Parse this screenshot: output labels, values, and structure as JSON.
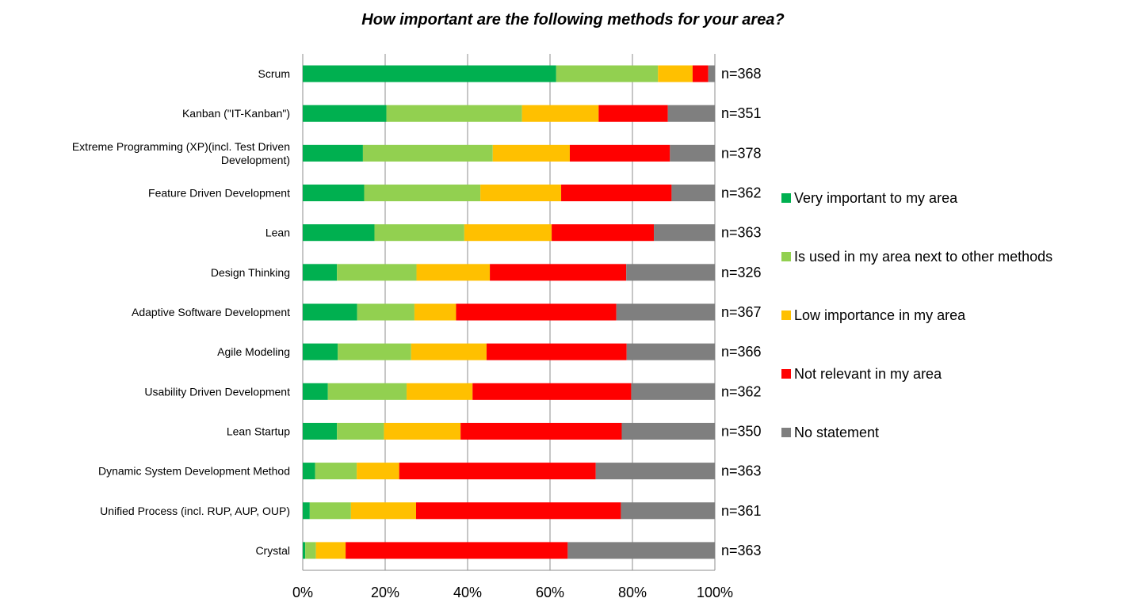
{
  "chart_data": {
    "type": "bar",
    "orientation": "horizontal",
    "stacked": "percent",
    "title": "How important are the following methods for your area?",
    "categories": [
      "Scrum",
      "Kanban (\"IT-Kanban\")",
      "Extreme Programming (XP)(incl. Test Driven Development)",
      "Feature Driven Development",
      "Lean",
      "Design Thinking",
      "Adaptive Software Development",
      "Agile Modeling",
      "Usability Driven Development",
      "Lean Startup",
      "Dynamic System Development Method",
      "Unified Process (incl. RUP, AUP, OUP)",
      "Crystal"
    ],
    "category_lines": [
      [
        "Scrum"
      ],
      [
        "Kanban (\"IT-Kanban\")"
      ],
      [
        "Extreme Programming (XP)(incl. Test Driven",
        "Development)"
      ],
      [
        "Feature Driven Development"
      ],
      [
        "Lean"
      ],
      [
        "Design Thinking"
      ],
      [
        "Adaptive Software Development"
      ],
      [
        "Agile Modeling"
      ],
      [
        "Usability Driven Development"
      ],
      [
        "Lean Startup"
      ],
      [
        "Dynamic System Development Method"
      ],
      [
        "Unified Process (incl. RUP, AUP, OUP)"
      ],
      [
        "Crystal"
      ]
    ],
    "n_labels": [
      "n=368",
      "n=351",
      "n=378",
      "n=362",
      "n=363",
      "n=326",
      "n=367",
      "n=366",
      "n=362",
      "n=350",
      "n=363",
      "n=361",
      "n=363"
    ],
    "series": [
      {
        "name": "Very important to my area",
        "color": "#00B050",
        "values": [
          61.5,
          20.3,
          14.6,
          14.9,
          17.4,
          8.3,
          13.2,
          8.5,
          6.1,
          8.3,
          3.0,
          1.7,
          0.6
        ]
      },
      {
        "name": "Is used in my area next to other methods",
        "color": "#92D050",
        "values": [
          24.7,
          32.9,
          31.5,
          28.2,
          21.8,
          19.3,
          13.9,
          17.8,
          19.1,
          11.4,
          10.1,
          10.0,
          2.6
        ]
      },
      {
        "name": "Low importance in my area",
        "color": "#FFC000",
        "values": [
          8.4,
          18.6,
          18.7,
          19.6,
          21.2,
          17.8,
          10.1,
          18.3,
          16.0,
          18.6,
          10.3,
          15.8,
          7.2
        ]
      },
      {
        "name": "Not relevant in my area",
        "color": "#FF0000",
        "values": [
          3.8,
          16.8,
          24.3,
          26.8,
          24.8,
          33.1,
          38.9,
          34.0,
          38.5,
          39.1,
          47.7,
          49.7,
          53.9
        ]
      },
      {
        "name": "No statement",
        "color": "#7F7F7F",
        "values": [
          1.6,
          11.4,
          10.9,
          10.5,
          14.8,
          21.5,
          23.9,
          21.4,
          20.3,
          22.6,
          28.9,
          22.8,
          35.7
        ]
      }
    ],
    "x_ticks": [
      "0%",
      "20%",
      "40%",
      "60%",
      "80%",
      "100%"
    ],
    "xlim": [
      0,
      100
    ],
    "grid": true,
    "legend_position": "right"
  }
}
